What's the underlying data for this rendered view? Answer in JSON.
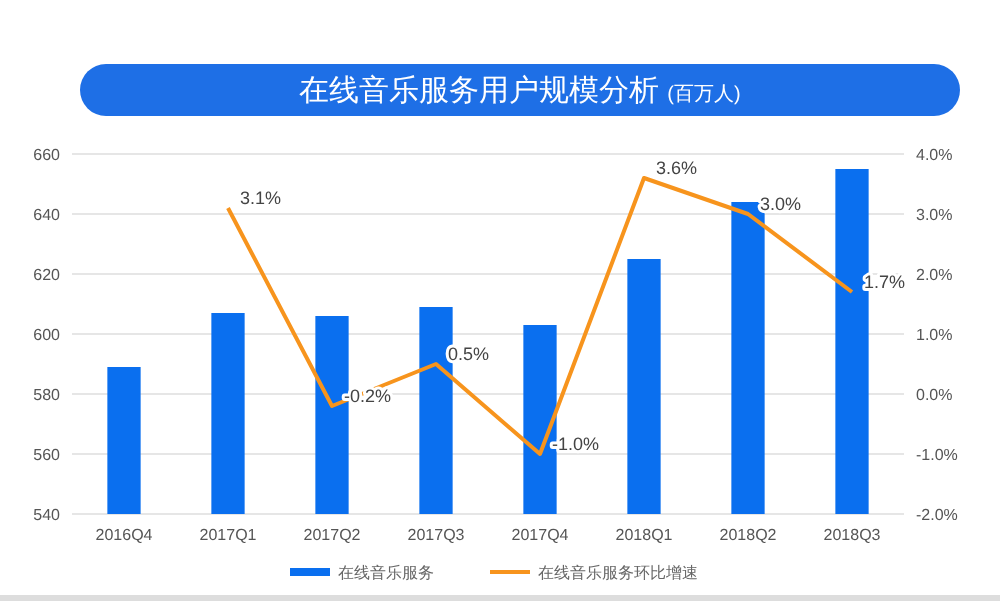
{
  "chart_data": {
    "type": "bar",
    "title": "在线音乐服务用户规模分析",
    "subtitle": "(百万人)",
    "categories": [
      "2016Q4",
      "2017Q1",
      "2017Q2",
      "2017Q3",
      "2017Q4",
      "2018Q1",
      "2018Q2",
      "2018Q3"
    ],
    "series": [
      {
        "name": "在线音乐服务",
        "color": "#0a6fef",
        "values": [
          589,
          607,
          606,
          609,
          603,
          625,
          644,
          655
        ]
      },
      {
        "name": "在线音乐服务环比增速",
        "type": "line",
        "axis": "y2",
        "color": "#f7941d",
        "values": [
          null,
          3.1,
          -0.2,
          0.5,
          -1.0,
          3.6,
          3.0,
          1.7
        ],
        "value_labels": [
          null,
          "3.1%",
          "-0.2%",
          "0.5%",
          "-1.0%",
          "3.6%",
          "3.0%",
          "1.7%"
        ]
      }
    ],
    "ylim": [
      540,
      660
    ],
    "yticks": [
      540,
      560,
      580,
      600,
      620,
      640,
      660
    ],
    "y2lim": [
      -2,
      4
    ],
    "y2ticks": [
      {
        "value": -2,
        "label": "-2.0%"
      },
      {
        "value": -1,
        "label": "-1.0%"
      },
      {
        "value": 0,
        "label": "0.0%"
      },
      {
        "value": 1,
        "label": "1.0%"
      },
      {
        "value": 2,
        "label": "2.0%"
      },
      {
        "value": 3,
        "label": "3.0%"
      },
      {
        "value": 4,
        "label": "4.0%"
      }
    ],
    "grid": "y",
    "legend": "bottom"
  }
}
